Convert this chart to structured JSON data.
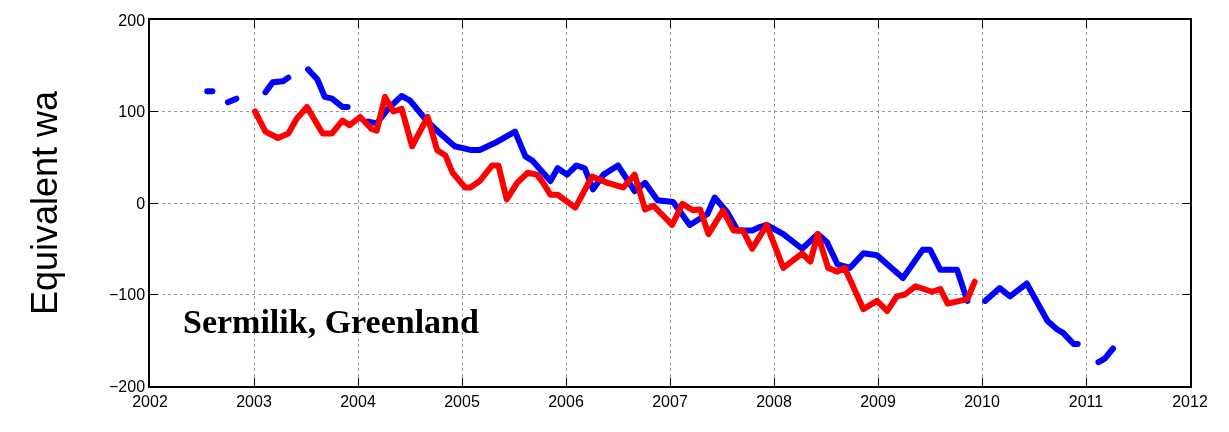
{
  "chart_data": {
    "type": "line",
    "ylabel": "Equivalent wa",
    "annotations": [
      "Sermilik, Greenland"
    ],
    "xlim": [
      2002,
      2012
    ],
    "xticks": [
      2002,
      2003,
      2004,
      2005,
      2006,
      2007,
      2008,
      2009,
      2010,
      2011,
      2012
    ],
    "ylim": [
      -200,
      200
    ],
    "yticks": [
      -200,
      -100,
      0,
      100,
      200
    ],
    "grid": true,
    "line_style": "solid",
    "marker": "none",
    "series": [
      {
        "color": "#0000ff",
        "x": [
          2002.55,
          2002.6,
          2002.68,
          2002.75,
          2002.83,
          2002.9,
          2003.11,
          2003.18,
          2003.28,
          2003.33,
          2003.42,
          2003.52,
          2003.61,
          2003.68,
          2003.75,
          2003.85,
          2003.9,
          2004.0,
          2004.1,
          2004.18,
          2004.29,
          2004.42,
          2004.5,
          2004.66,
          2004.79,
          2004.93,
          2005.08,
          2005.17,
          2005.34,
          2005.51,
          2005.61,
          2005.68,
          2005.85,
          2005.92,
          2006.01,
          2006.1,
          2006.18,
          2006.26,
          2006.36,
          2006.5,
          2006.66,
          2006.76,
          2006.88,
          2007.03,
          2007.19,
          2007.36,
          2007.43,
          2007.55,
          2007.65,
          2007.79,
          2007.87,
          2007.93,
          2008.09,
          2008.27,
          2008.42,
          2008.51,
          2008.61,
          2008.73,
          2008.86,
          2008.99,
          2009.24,
          2009.43,
          2009.5,
          2009.6,
          2009.76,
          2009.86,
          2009.95,
          2010.03,
          2010.17,
          2010.27,
          2010.43,
          2010.63,
          2010.72,
          2010.78,
          2010.88,
          2010.92,
          2011.02,
          2011.12,
          2011.18,
          2011.26
        ],
        "values": [
          122,
          122,
          null,
          110,
          114,
          null,
          121,
          132,
          133,
          137,
          null,
          146,
          135,
          116,
          114,
          105,
          105,
          null,
          89,
          87,
          103,
          117,
          112,
          90,
          76,
          62,
          58,
          58,
          67,
          78,
          51,
          46,
          24,
          38,
          31,
          41,
          38,
          15,
          31,
          41,
          13,
          22,
          3,
          1,
          -24,
          -12,
          6,
          -10,
          -30,
          -30,
          -26,
          -24,
          -34,
          -50,
          -34,
          -43,
          -67,
          -71,
          -55,
          -57,
          -82,
          -51,
          -51,
          -73,
          -73,
          -107,
          null,
          -107,
          -93,
          -102,
          -88,
          -129,
          -138,
          -142,
          -154,
          -154,
          null,
          -174,
          -170,
          -159
        ]
      },
      {
        "color": "#ff0000",
        "x": [
          2003.01,
          2003.11,
          2003.23,
          2003.33,
          2003.41,
          2003.51,
          2003.66,
          2003.75,
          2003.85,
          2003.92,
          2004.02,
          2004.13,
          2004.18,
          2004.26,
          2004.34,
          2004.42,
          2004.52,
          2004.67,
          2004.76,
          2004.84,
          2004.91,
          2005.03,
          2005.08,
          2005.17,
          2005.29,
          2005.35,
          2005.43,
          2005.53,
          2005.63,
          2005.72,
          2005.78,
          2005.85,
          2005.92,
          2006.09,
          2006.25,
          2006.4,
          2006.55,
          2006.66,
          2006.76,
          2006.84,
          2007.02,
          2007.12,
          2007.22,
          2007.29,
          2007.37,
          2007.51,
          2007.61,
          2007.7,
          2007.79,
          2007.93,
          2008.09,
          2008.27,
          2008.35,
          2008.42,
          2008.52,
          2008.61,
          2008.68,
          2008.86,
          2008.99,
          2009.09,
          2009.18,
          2009.26,
          2009.36,
          2009.52,
          2009.6,
          2009.67,
          2009.86,
          2009.93
        ],
        "values": [
          100,
          78,
          71,
          76,
          92,
          105,
          76,
          76,
          90,
          85,
          94,
          81,
          79,
          116,
          100,
          103,
          62,
          94,
          58,
          52,
          33,
          17,
          17,
          24,
          41,
          41,
          4,
          22,
          33,
          31,
          22,
          9,
          9,
          -5,
          29,
          22,
          17,
          31,
          -7,
          -3,
          -24,
          -1,
          -8,
          -7,
          -34,
          -8,
          -30,
          -30,
          -50,
          -24,
          -71,
          -55,
          -64,
          -34,
          -71,
          -75,
          -71,
          -116,
          -107,
          -118,
          -102,
          -100,
          -91,
          -97,
          -94,
          -110,
          -105,
          -86
        ]
      }
    ]
  }
}
